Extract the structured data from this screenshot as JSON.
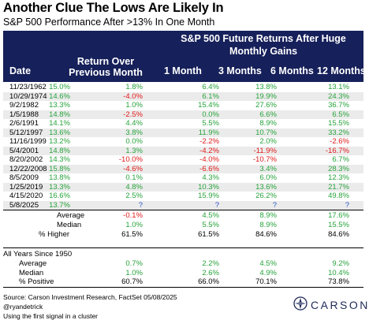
{
  "title": "Another Clue The Lows Are Likely In",
  "subtitle": "S&P 500 Performance After >13% In One Month",
  "header": {
    "group": "S&P 500 Future Returns After Huge Monthly Gains",
    "date": "Date",
    "prev": "Return Over Previous Month",
    "m1": "1 Month",
    "m3": "3 Months",
    "m6": "6 Months",
    "m12": "12 Months"
  },
  "rows": [
    {
      "date": "11/23/1962",
      "prev": "15.0%",
      "m1": "1.8%",
      "m3": "6.4%",
      "m6": "13.8%",
      "m12": "13.1%"
    },
    {
      "date": "10/29/1974",
      "prev": "14.6%",
      "m1": "-4.0%",
      "m3": "6.1%",
      "m6": "19.9%",
      "m12": "24.3%"
    },
    {
      "date": "9/2/1982",
      "prev": "13.3%",
      "m1": "1.0%",
      "m3": "15.4%",
      "m6": "27.6%",
      "m12": "36.7%"
    },
    {
      "date": "1/5/1988",
      "prev": "14.8%",
      "m1": "-2.5%",
      "m3": "0.0%",
      "m6": "6.6%",
      "m12": "6.5%"
    },
    {
      "date": "2/6/1991",
      "prev": "14.1%",
      "m1": "4.4%",
      "m3": "5.5%",
      "m6": "8.9%",
      "m12": "15.5%"
    },
    {
      "date": "5/12/1997",
      "prev": "13.6%",
      "m1": "3.8%",
      "m3": "11.9%",
      "m6": "10.7%",
      "m12": "33.2%"
    },
    {
      "date": "11/16/1999",
      "prev": "13.2%",
      "m1": "0.0%",
      "m3": "-2.2%",
      "m6": "2.0%",
      "m12": "-2.6%"
    },
    {
      "date": "5/4/2001",
      "prev": "14.8%",
      "m1": "1.3%",
      "m3": "-4.2%",
      "m6": "-11.9%",
      "m12": "-16.7%"
    },
    {
      "date": "8/20/2002",
      "prev": "14.3%",
      "m1": "-10.0%",
      "m3": "-4.0%",
      "m6": "-10.7%",
      "m12": "6.7%"
    },
    {
      "date": "12/22/2008",
      "prev": "15.8%",
      "m1": "-4.6%",
      "m3": "-6.6%",
      "m6": "3.4%",
      "m12": "28.3%"
    },
    {
      "date": "8/5/2009",
      "prev": "13.8%",
      "m1": "0.1%",
      "m3": "4.3%",
      "m6": "6.0%",
      "m12": "12.3%"
    },
    {
      "date": "1/25/2019",
      "prev": "13.3%",
      "m1": "4.8%",
      "m3": "10.3%",
      "m6": "13.6%",
      "m12": "21.7%"
    },
    {
      "date": "4/15/2020",
      "prev": "16.6%",
      "m1": "2.5%",
      "m3": "15.9%",
      "m6": "26.2%",
      "m12": "49.8%"
    },
    {
      "date": "5/8/2025",
      "prev": "13.7%",
      "m1": "?",
      "m3": "?",
      "m6": "?",
      "m12": "?"
    }
  ],
  "summary": [
    {
      "label": "Average",
      "m1": "-0.1%",
      "m3": "4.5%",
      "m6": "8.9%",
      "m12": "17.6%"
    },
    {
      "label": "Median",
      "m1": "1.0%",
      "m3": "5.5%",
      "m6": "8.9%",
      "m12": "15.5%"
    },
    {
      "label": "% Higher",
      "m1": "61.5%",
      "m3": "61.5%",
      "m6": "84.6%",
      "m12": "84.6%"
    }
  ],
  "all_years": {
    "label": "All Years Since 1950",
    "rows": [
      {
        "label": "Average",
        "m1": "0.7%",
        "m3": "2.2%",
        "m6": "4.5%",
        "m12": "9.2%"
      },
      {
        "label": "Median",
        "m1": "1.0%",
        "m3": "2.6%",
        "m6": "4.9%",
        "m12": "10.4%"
      },
      {
        "label": "% Positive",
        "m1": "60.7%",
        "m3": "66.0%",
        "m6": "70.1%",
        "m12": "73.8%"
      }
    ]
  },
  "footer": {
    "source": "Source: Carson Investment Research, FactSet 05/08/2025",
    "handle": "@ryandetrick",
    "note": "Using the first signal in a cluster"
  },
  "logo": {
    "text": "CARSON"
  },
  "colors": {
    "header_bg": "#16205a",
    "positive": "#28a33c",
    "negative": "#e21b1b",
    "unknown": "#2753c4",
    "stripe": "#ebebeb"
  }
}
